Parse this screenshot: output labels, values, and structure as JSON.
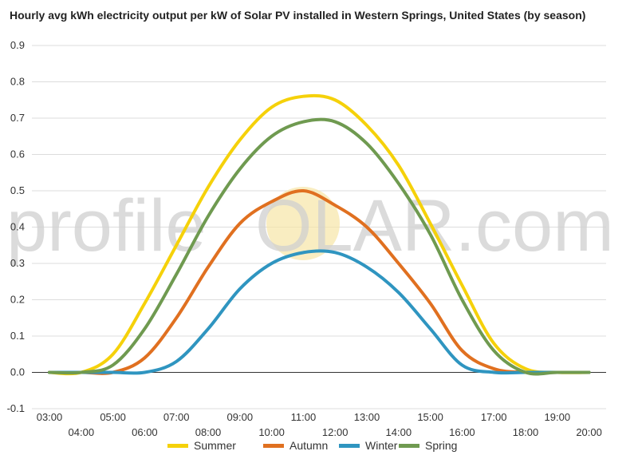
{
  "chart_data": {
    "type": "line",
    "title": "Hourly avg kWh electricity output per kW of Solar PV installed in Western Springs, United States (by season)",
    "xlabel": "",
    "ylabel": "",
    "x": [
      "03:00",
      "04:00",
      "05:00",
      "06:00",
      "07:00",
      "08:00",
      "09:00",
      "10:00",
      "11:00",
      "12:00",
      "13:00",
      "14:00",
      "15:00",
      "16:00",
      "17:00",
      "18:00",
      "19:00",
      "20:00"
    ],
    "x_tick_labels": [
      "03:00",
      "04:00",
      "05:00",
      "06:00",
      "07:00",
      "08:00",
      "09:00",
      "10:00",
      "11:00",
      "12:00",
      "13:00",
      "14:00",
      "15:00",
      "16:00",
      "17:00",
      "18:00",
      "19:00",
      "20:00"
    ],
    "ylim": [
      -0.1,
      0.9
    ],
    "y_ticks": [
      "-0.1",
      "0.0",
      "0.1",
      "0.2",
      "0.3",
      "0.4",
      "0.5",
      "0.6",
      "0.7",
      "0.8",
      "0.9"
    ],
    "grid": true,
    "legend_position": "bottom",
    "series": [
      {
        "name": "Summer",
        "color": "#f5d10a",
        "values": [
          0.0,
          0.0,
          0.05,
          0.19,
          0.35,
          0.51,
          0.64,
          0.73,
          0.76,
          0.75,
          0.68,
          0.57,
          0.41,
          0.24,
          0.08,
          0.01,
          0.0,
          0.0
        ]
      },
      {
        "name": "Autumn",
        "color": "#e07020",
        "values": [
          0.0,
          0.0,
          0.0,
          0.04,
          0.15,
          0.29,
          0.41,
          0.47,
          0.5,
          0.46,
          0.4,
          0.3,
          0.19,
          0.06,
          0.01,
          0.0,
          0.0,
          0.0
        ]
      },
      {
        "name": "Winter",
        "color": "#2f95c0",
        "values": [
          0.0,
          0.0,
          0.0,
          0.0,
          0.03,
          0.12,
          0.23,
          0.3,
          0.33,
          0.33,
          0.29,
          0.22,
          0.12,
          0.02,
          0.0,
          0.0,
          0.0,
          0.0
        ]
      },
      {
        "name": "Spring",
        "color": "#6f9a50",
        "values": [
          0.0,
          0.0,
          0.02,
          0.12,
          0.27,
          0.43,
          0.56,
          0.65,
          0.69,
          0.69,
          0.63,
          0.52,
          0.38,
          0.2,
          0.06,
          0.0,
          0.0,
          0.0
        ]
      }
    ]
  },
  "watermark": {
    "part1": "profile",
    "part2": "S",
    "part3": "OLAR.com"
  }
}
